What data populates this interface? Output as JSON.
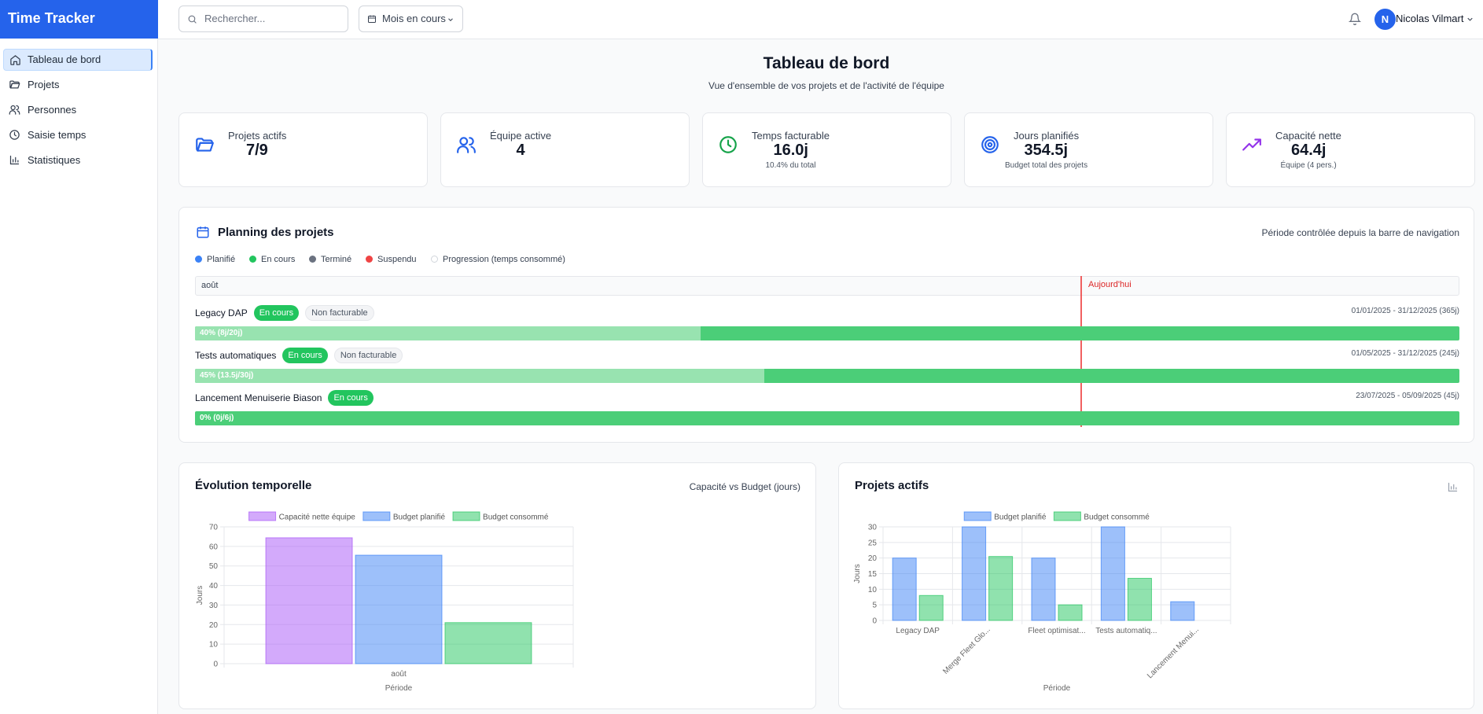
{
  "app": {
    "title": "Time Tracker"
  },
  "nav": {
    "items": [
      "Tableau de bord",
      "Projets",
      "Personnes",
      "Saisie temps",
      "Statistiques"
    ],
    "active": 0
  },
  "topbar": {
    "search": "Rechercher...",
    "period": "Mois en cours",
    "user_initial": "N",
    "user_name": "Nicolas Vilmart"
  },
  "header": {
    "title": "Tableau de bord",
    "subtitle": "Vue d'ensemble de vos projets et de l'activité de l'équipe"
  },
  "kpis": [
    {
      "label": "Projets actifs",
      "value": "7/9"
    },
    {
      "label": "Équipe active",
      "value": "4"
    },
    {
      "label": "Temps facturable",
      "value": "16.0j",
      "note": "10.4% du total"
    },
    {
      "label": "Jours planifiés",
      "value": "354.5j",
      "note": "Budget total des projets"
    },
    {
      "label": "Capacité nette",
      "value": "64.4j",
      "note": "Équipe (4 pers.)"
    }
  ],
  "planning": {
    "title": "Planning des projets",
    "note": "Période contrôlée depuis la barre de navigation",
    "legend": [
      "Planifié",
      "En cours",
      "Terminé",
      "Suspendu",
      "Progression (temps consommé)"
    ],
    "month": "août",
    "today": "Aujourd'hui",
    "projects": [
      {
        "name": "Legacy DAP",
        "status": "En cours",
        "billing": "Non facturable",
        "dates": "01/01/2025 - 31/12/2025 (365j)",
        "progress_label": "40% (8j/20j)",
        "progress": 40
      },
      {
        "name": "Tests automatiques",
        "status": "En cours",
        "billing": "Non facturable",
        "dates": "01/05/2025 - 31/12/2025 (245j)",
        "progress_label": "45% (13.5j/30j)",
        "progress": 45
      },
      {
        "name": "Lancement Menuiserie Biason",
        "status": "En cours",
        "dates": "23/07/2025 - 05/09/2025 (45j)",
        "progress_label": "0% (0j/6j)",
        "progress": 0
      }
    ]
  },
  "chart_data": [
    {
      "type": "bar",
      "title": "Évolution temporelle",
      "subtitle": "Capacité vs Budget (jours)",
      "x_label": "Période",
      "y_label": "Jours",
      "categories": [
        "août"
      ],
      "series": [
        {
          "name": "Capacité nette équipe",
          "color": "#a855f7",
          "values": [
            64.4
          ]
        },
        {
          "name": "Budget planifié",
          "color": "#3b82f6",
          "values": [
            55.5
          ]
        },
        {
          "name": "Budget consommé",
          "color": "#22c55e",
          "values": [
            21
          ]
        }
      ],
      "ylim": [
        0,
        70
      ],
      "yticks": [
        0,
        10,
        20,
        30,
        40,
        50,
        60,
        70
      ],
      "grid": true
    },
    {
      "type": "bar",
      "title": "Projets actifs",
      "x_label": "Période",
      "y_label": "Jours",
      "categories": [
        "Legacy DAP",
        "Merge Fleet Glo...",
        "Fleet optimisat...",
        "Tests automatiq...",
        "Lancement Menui..."
      ],
      "series": [
        {
          "name": "Budget planifié",
          "color": "#3b82f6",
          "values": [
            20,
            30,
            20,
            30,
            6
          ]
        },
        {
          "name": "Budget consommé",
          "color": "#22c55e",
          "values": [
            8,
            20.5,
            5,
            13.5,
            0
          ]
        }
      ],
      "ylim": [
        0,
        30
      ],
      "yticks": [
        0,
        5,
        10,
        15,
        20,
        25,
        30
      ],
      "grid": true
    }
  ]
}
